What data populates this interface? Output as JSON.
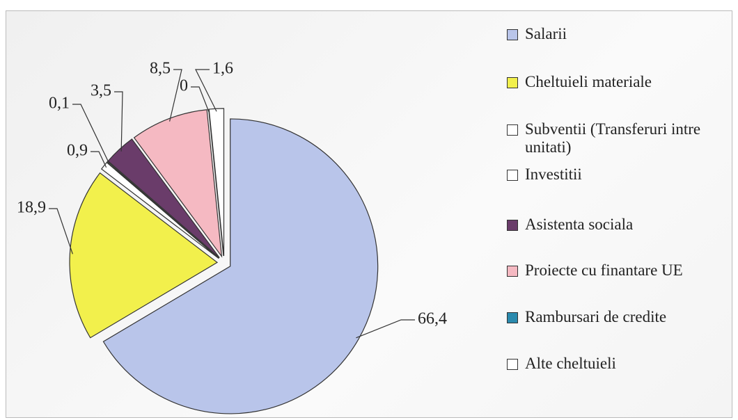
{
  "chart_data": {
    "type": "pie",
    "categories": [
      "Salarii",
      "Cheltuieli materiale",
      "Subventii (Transferuri intre unitati)",
      "Investitii",
      "Asistenta sociala",
      "Proiecte cu finantare UE",
      "Rambursari de credite",
      "Alte cheltuieli"
    ],
    "values": [
      66.4,
      18.9,
      0.9,
      0.1,
      3.5,
      8.5,
      0,
      1.6
    ],
    "value_labels": [
      "66,4",
      "18,9",
      "0,9",
      "0,1",
      "3,5",
      "8,5",
      "0",
      "1,6"
    ],
    "colors": [
      "#b9c5ea",
      "#f2f04c",
      "#ffffff",
      "#ffffff",
      "#6a3c6a",
      "#f5b9c2",
      "#2a8aae",
      "#ffffff"
    ],
    "legend": "right"
  }
}
